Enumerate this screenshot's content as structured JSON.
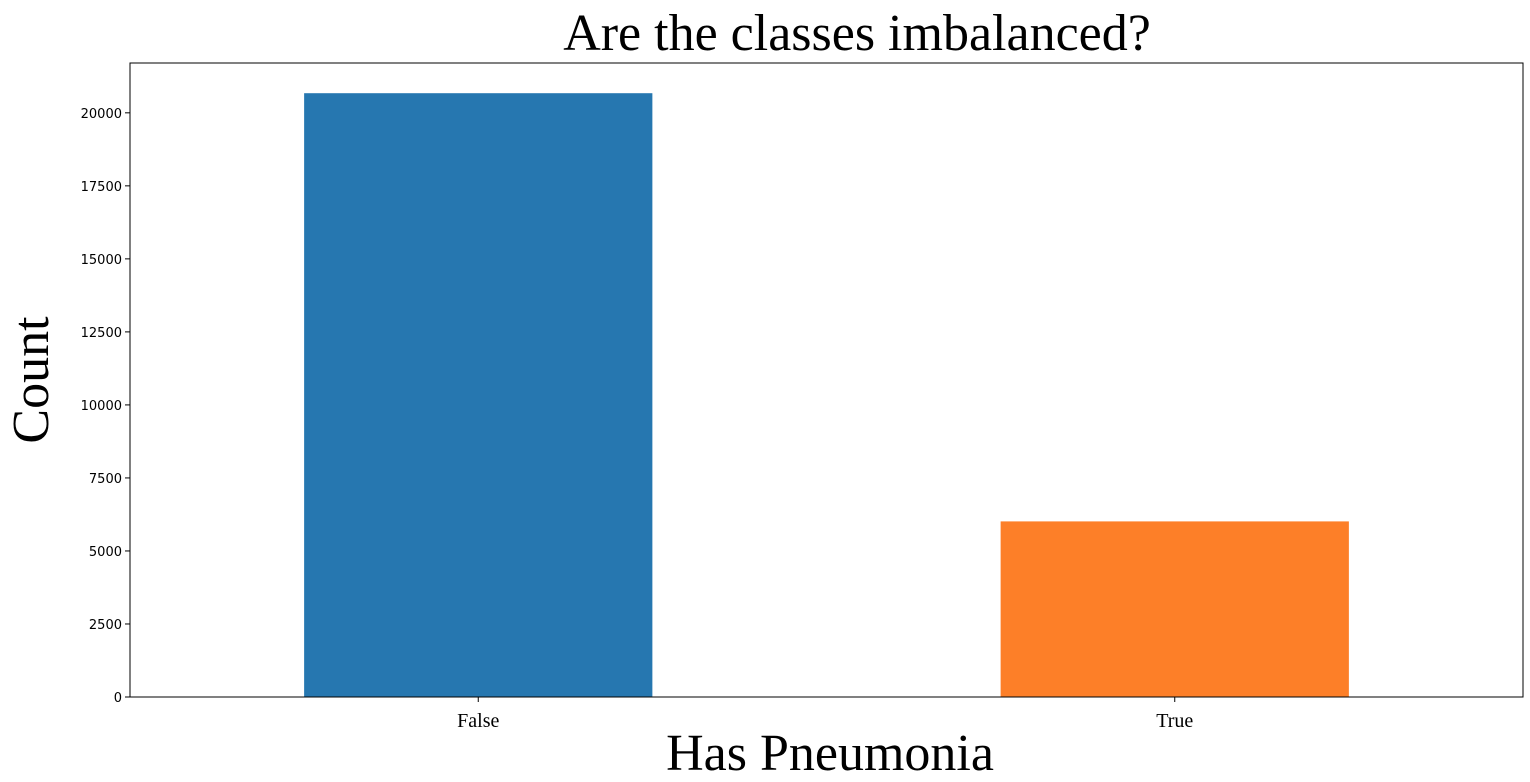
{
  "chart_data": {
    "type": "bar",
    "title": "Are the classes imbalanced?",
    "xlabel": "Has Pneumonia",
    "ylabel": "Count",
    "categories": [
      "False",
      "True"
    ],
    "values": [
      20672,
      6012
    ],
    "colors": [
      "#2677b0",
      "#fd7f28"
    ],
    "yticks": [
      0,
      2500,
      5000,
      7500,
      10000,
      12500,
      15000,
      17500,
      20000
    ],
    "ytick_labels": [
      "0",
      "2500",
      "5000",
      "7500",
      "10000",
      "12500",
      "15000",
      "17500",
      "20000"
    ],
    "ylim": [
      0,
      21706
    ],
    "grid": false,
    "legend": "none"
  }
}
